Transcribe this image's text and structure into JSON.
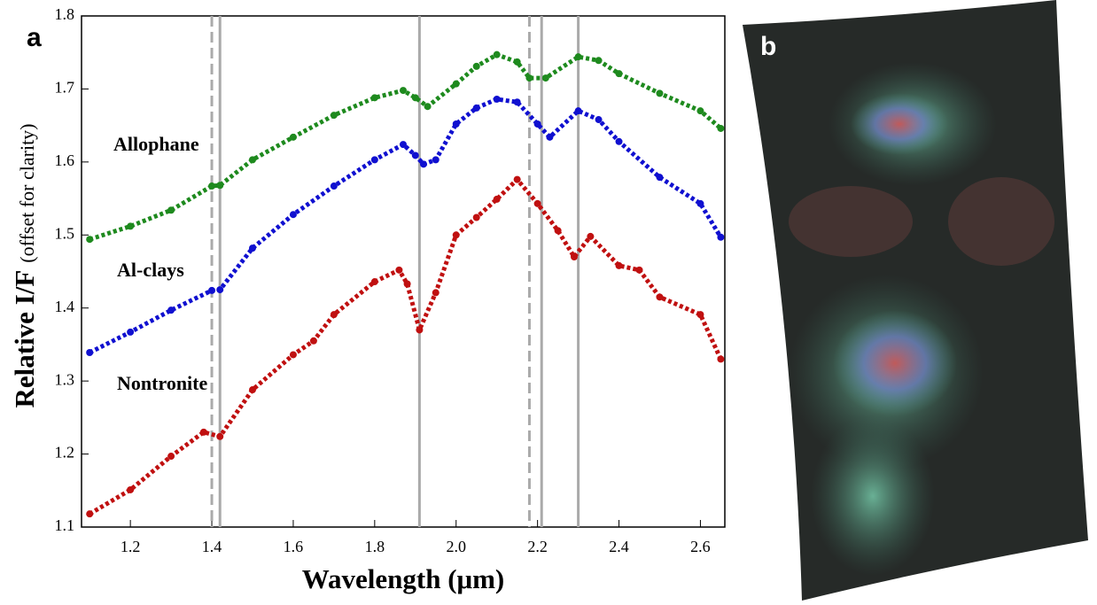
{
  "chart_data": {
    "type": "scatter",
    "panel_labels": [
      "a",
      "b"
    ],
    "x_label": "Wavelength (μm)",
    "y_label": "Relative I/F",
    "y_label_note": "(offset for clarity)",
    "xlim": [
      1.08,
      2.66
    ],
    "ylim": [
      1.1,
      1.8
    ],
    "xticks": [
      1.2,
      1.4,
      1.6,
      1.8,
      {
        "value": 2,
        "label": "2.0"
      },
      2.2,
      2.4,
      2.6
    ],
    "yticks": [
      1.1,
      1.2,
      1.3,
      1.4,
      1.5,
      1.6,
      1.7,
      1.8
    ],
    "vlines": [
      {
        "x": 1.4,
        "style": "dashed"
      },
      {
        "x": 1.42,
        "style": "solid"
      },
      {
        "x": 1.91,
        "style": "solid"
      },
      {
        "x": 2.18,
        "style": "dashed"
      },
      {
        "x": 2.21,
        "style": "solid"
      },
      {
        "x": 2.3,
        "style": "solid"
      }
    ],
    "series": [
      {
        "name": "Allophane",
        "color": "#1e8a1e",
        "x": [
          1.1,
          1.2,
          1.3,
          1.4,
          1.42,
          1.5,
          1.6,
          1.7,
          1.8,
          1.87,
          1.9,
          1.93,
          2.0,
          2.05,
          2.1,
          2.15,
          2.18,
          2.22,
          2.3,
          2.35,
          2.4,
          2.5,
          2.6,
          2.65
        ],
        "values": [
          1.494,
          1.512,
          1.534,
          1.567,
          1.568,
          1.603,
          1.634,
          1.664,
          1.688,
          1.698,
          1.688,
          1.676,
          1.707,
          1.731,
          1.747,
          1.737,
          1.715,
          1.715,
          1.744,
          1.739,
          1.721,
          1.694,
          1.67,
          1.646
        ]
      },
      {
        "name": "Al-clays",
        "color": "#1010d0",
        "x": [
          1.1,
          1.2,
          1.3,
          1.4,
          1.42,
          1.5,
          1.6,
          1.7,
          1.8,
          1.87,
          1.9,
          1.92,
          1.95,
          2.0,
          2.05,
          2.1,
          2.15,
          2.2,
          2.23,
          2.3,
          2.35,
          2.4,
          2.5,
          2.6,
          2.65
        ],
        "values": [
          1.339,
          1.367,
          1.397,
          1.424,
          1.425,
          1.482,
          1.528,
          1.567,
          1.603,
          1.624,
          1.609,
          1.597,
          1.603,
          1.652,
          1.674,
          1.686,
          1.682,
          1.652,
          1.634,
          1.67,
          1.658,
          1.628,
          1.579,
          1.543,
          1.497
        ]
      },
      {
        "name": "Nontronite",
        "color": "#c01010",
        "x": [
          1.1,
          1.2,
          1.3,
          1.38,
          1.42,
          1.5,
          1.6,
          1.65,
          1.7,
          1.8,
          1.86,
          1.88,
          1.91,
          1.95,
          2.0,
          2.05,
          2.1,
          2.15,
          2.2,
          2.25,
          2.29,
          2.33,
          2.4,
          2.45,
          2.5,
          2.6,
          2.65
        ],
        "values": [
          1.118,
          1.151,
          1.197,
          1.23,
          1.224,
          1.288,
          1.336,
          1.355,
          1.391,
          1.436,
          1.452,
          1.433,
          1.37,
          1.421,
          1.5,
          1.524,
          1.549,
          1.576,
          1.543,
          1.506,
          1.47,
          1.498,
          1.458,
          1.452,
          1.415,
          1.391,
          1.33
        ]
      }
    ]
  }
}
